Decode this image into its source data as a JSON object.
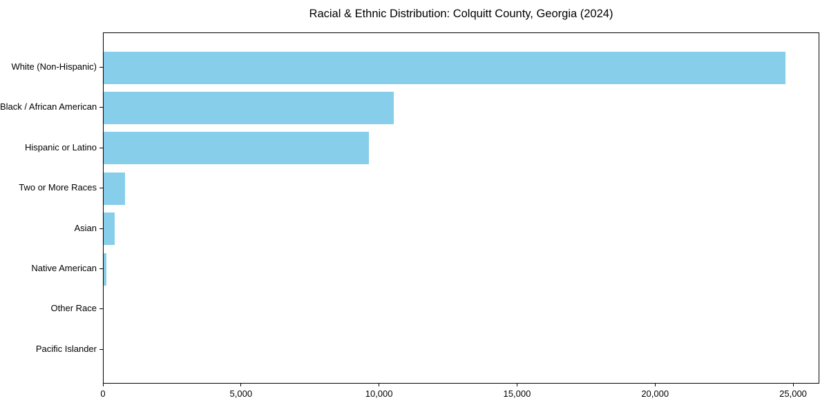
{
  "chart_data": {
    "type": "bar",
    "orientation": "horizontal",
    "title": "Racial & Ethnic Distribution: Colquitt County, Georgia (2024)",
    "categories": [
      "White (Non-Hispanic)",
      "Black / African American",
      "Hispanic or Latino",
      "Two or More Races",
      "Asian",
      "Native American",
      "Other Race",
      "Pacific Islander"
    ],
    "values": [
      24700,
      10500,
      9600,
      780,
      400,
      90,
      0,
      0
    ],
    "xlabel": "",
    "ylabel": "",
    "xlim": [
      0,
      25950
    ],
    "xticks": [
      0,
      5000,
      10000,
      15000,
      20000,
      25000
    ],
    "xtick_labels": [
      "0",
      "5,000",
      "10,000",
      "15,000",
      "20,000",
      "25,000"
    ],
    "bar_color": "#87CEEB",
    "axis_color": "#000000",
    "grid": false,
    "legend_position": "none"
  }
}
